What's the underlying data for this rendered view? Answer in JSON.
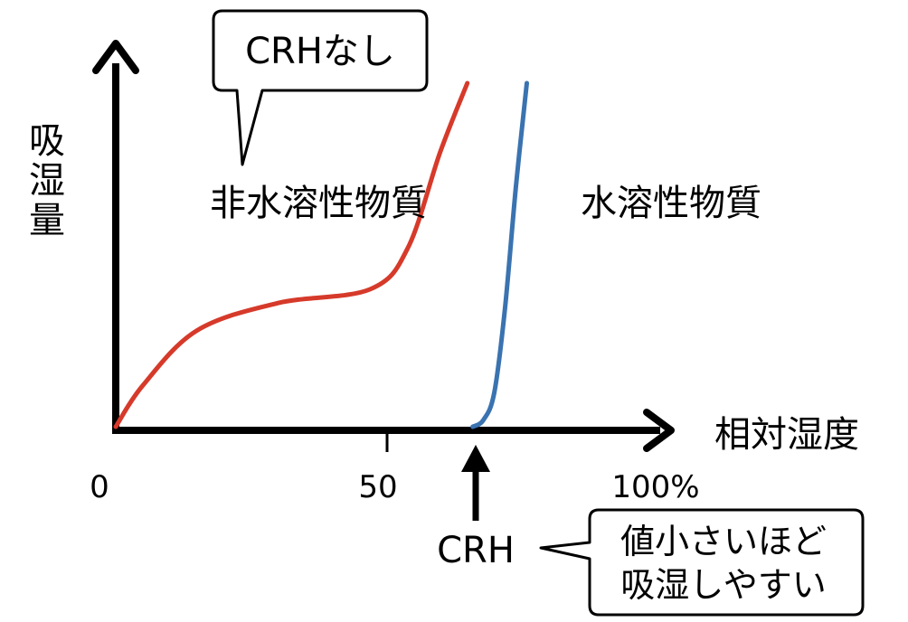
{
  "chart_data": {
    "type": "line",
    "ylabel": "吸湿量",
    "xlabel": "相対湿度",
    "x_ticks": [
      "0",
      "50",
      "100%"
    ],
    "series": [
      {
        "name": "非水溶性物質",
        "color": "#d63a2a",
        "points": [
          [
            0,
            0
          ],
          [
            5,
            12
          ],
          [
            15,
            28
          ],
          [
            30,
            36
          ],
          [
            47,
            40
          ],
          [
            54,
            52
          ],
          [
            60,
            80
          ],
          [
            65,
            100
          ]
        ]
      },
      {
        "name": "水溶性物質",
        "color": "#3a73b0",
        "points": [
          [
            66,
            0
          ],
          [
            68,
            2
          ],
          [
            70,
            10
          ],
          [
            72,
            35
          ],
          [
            74,
            70
          ],
          [
            76,
            100
          ]
        ]
      }
    ],
    "annotations": {
      "no_crh_callout": "CRHなし",
      "crh_label": "CRH",
      "crh_note_line1": "値小さいほど",
      "crh_note_line2": "吸湿しやすい"
    }
  }
}
